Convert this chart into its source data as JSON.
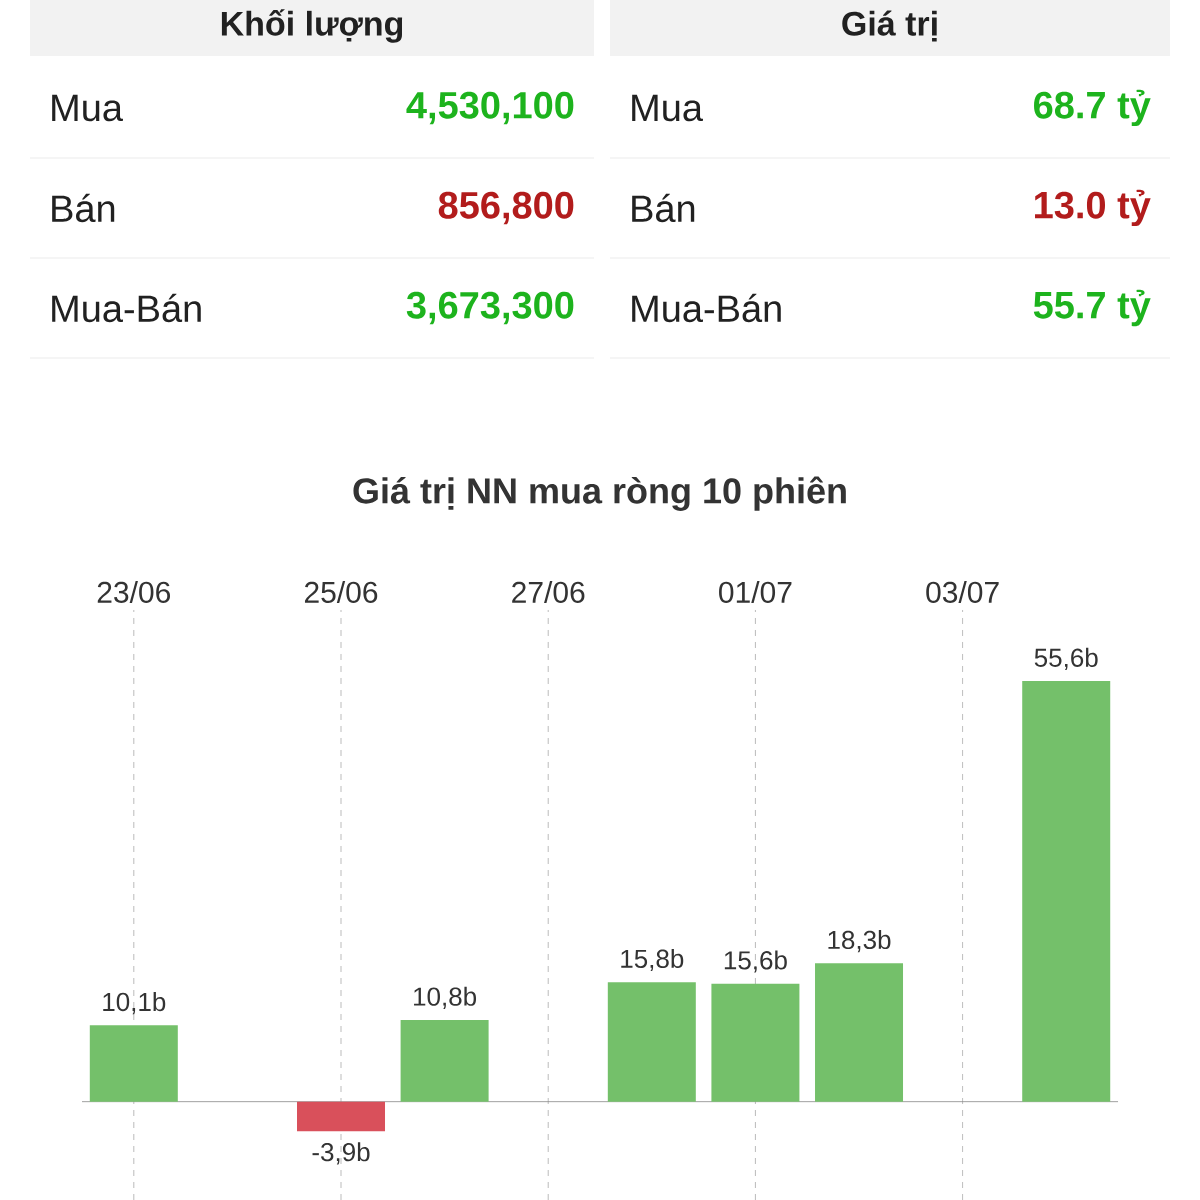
{
  "chart_data": [
    {
      "type": "other",
      "annotations": [
        "Khối lượng",
        "Giá trị",
        "Mua",
        "4,530,100",
        "Bán",
        "856,800",
        "Mua-Bán",
        "3,673,300",
        "Mua",
        "68.7 tỷ",
        "Bán",
        "13.0 tỷ",
        "Mua-Bán",
        "55.7 tỷ"
      ],
      "colors": [
        "#212121",
        "#212121",
        "#212121",
        "#1db31d",
        "#212121",
        "#b21c1c",
        "#212121",
        "#1db31d",
        "#212121",
        "#1db31d",
        "#212121",
        "#b21c1c",
        "#212121",
        "#1db31d"
      ]
    },
    {
      "type": "bar",
      "title": "Giá trị NN mua ròng 10 phiên",
      "categories": [
        "23/06",
        null,
        "25/06",
        null,
        "27/06",
        null,
        "01/07",
        null,
        "03/07",
        null
      ],
      "values": [
        10.1,
        null,
        -3.9,
        10.8,
        null,
        15.8,
        15.6,
        18.3,
        null,
        55.6
      ],
      "value_labels": [
        "10,1b",
        null,
        "-3,9b",
        "10,8b",
        null,
        "15,8b",
        "15,6b",
        "18,3b",
        null,
        "55,6b"
      ],
      "colors": [
        "#74c06a",
        "#d9505b",
        "#d9505b",
        "#74c06a",
        "#d9505b",
        "#74c06a",
        "#74c06a",
        "#74c06a",
        "#d9505b",
        "#74c06a"
      ],
      "ylim": [
        -13,
        65
      ],
      "tick_labels": "x",
      "grid": "x"
    }
  ]
}
